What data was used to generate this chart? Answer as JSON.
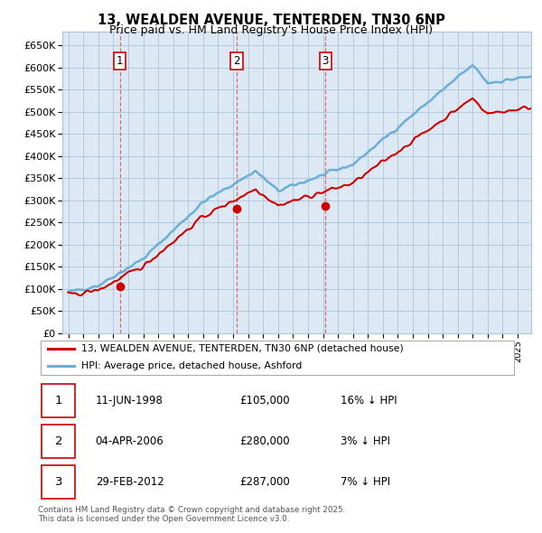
{
  "title_line1": "13, WEALDEN AVENUE, TENTERDEN, TN30 6NP",
  "title_line2": "Price paid vs. HM Land Registry's House Price Index (HPI)",
  "ylim": [
    0,
    680000
  ],
  "yticks": [
    0,
    50000,
    100000,
    150000,
    200000,
    250000,
    300000,
    350000,
    400000,
    450000,
    500000,
    550000,
    600000,
    650000
  ],
  "ytick_labels": [
    "£0",
    "£50K",
    "£100K",
    "£150K",
    "£200K",
    "£250K",
    "£300K",
    "£350K",
    "£400K",
    "£450K",
    "£500K",
    "£550K",
    "£600K",
    "£650K"
  ],
  "hpi_color": "#6baed6",
  "hpi_fill_color": "#c6dbef",
  "price_color": "#cc0000",
  "sale_marker_color": "#cc0000",
  "purchase_dates": [
    1998.44,
    2006.25,
    2012.16
  ],
  "purchase_prices": [
    105000,
    280000,
    287000
  ],
  "purchase_labels": [
    "1",
    "2",
    "3"
  ],
  "legend_label_price": "13, WEALDEN AVENUE, TENTERDEN, TN30 6NP (detached house)",
  "legend_label_hpi": "HPI: Average price, detached house, Ashford",
  "table_rows": [
    [
      "1",
      "11-JUN-1998",
      "£105,000",
      "16% ↓ HPI"
    ],
    [
      "2",
      "04-APR-2006",
      "£280,000",
      "3% ↓ HPI"
    ],
    [
      "3",
      "29-FEB-2012",
      "£287,000",
      "7% ↓ HPI"
    ]
  ],
  "footnote": "Contains HM Land Registry data © Crown copyright and database right 2025.\nThis data is licensed under the Open Government Licence v3.0.",
  "bg_color": "#ffffff",
  "plot_bg_color": "#dce9f5",
  "grid_color": "#b0c4d8",
  "vline_color": "#e06060"
}
